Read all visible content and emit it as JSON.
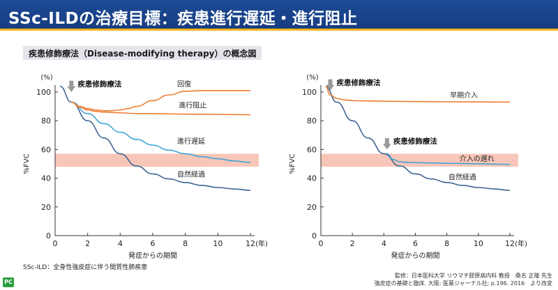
{
  "header": {
    "title": "SSc-ILDの治療目標：疾患進行遅延・進行阻止"
  },
  "banner": {
    "text": "疾患修飾療法（Disease-modifying therapy）の概念図"
  },
  "colors": {
    "header_bg": "#1d4b97",
    "accent": "#f4b41a",
    "orange": "#ee7d32",
    "blue": "#3fa3d9",
    "dark_blue": "#3e6591",
    "band": "#f7c6b8",
    "arrow": "#9a9a9a"
  },
  "chart_data": [
    {
      "type": "line",
      "title": "疾患修飾療法",
      "xlabel": "発症からの期間",
      "xunit": "(年)",
      "ylabel": "%FVC",
      "yunit": "(%)",
      "xlim": [
        0,
        12
      ],
      "ylim": [
        0,
        100
      ],
      "xticks": [
        0,
        2,
        4,
        6,
        8,
        10,
        12
      ],
      "yticks": [
        0,
        20,
        40,
        60,
        80,
        100
      ],
      "band": {
        "from": 48,
        "to": 57
      },
      "annotations": [
        {
          "text": "疾患修飾療法",
          "x": 1.0,
          "y": 103,
          "arrow": true
        }
      ],
      "series": [
        {
          "name": "回復",
          "color": "#ee7d32",
          "x": [
            1,
            1.5,
            2,
            2.5,
            3,
            3.5,
            4,
            4.5,
            5,
            6,
            7,
            8,
            9,
            10,
            11,
            12
          ],
          "y": [
            93,
            90,
            88.5,
            87.5,
            87,
            87,
            87.5,
            88.5,
            90,
            94,
            98,
            100.5,
            101,
            101,
            101,
            101
          ],
          "label_x": 7.5,
          "label_y": 104
        },
        {
          "name": "進行阻止",
          "color": "#ee7d32",
          "x": [
            1,
            1.5,
            2,
            2.5,
            3,
            4,
            5,
            6,
            7,
            8,
            9,
            10,
            11,
            12
          ],
          "y": [
            93,
            89.5,
            87.5,
            86.5,
            86,
            85.5,
            85,
            85,
            84.8,
            84.6,
            84.5,
            84.4,
            84.3,
            84.2
          ],
          "label_x": 7.6,
          "label_y": 89
        },
        {
          "name": "進行遅延",
          "color": "#3fa3d9",
          "x": [
            1,
            2,
            3,
            4,
            5,
            6,
            7,
            8,
            9,
            10,
            11,
            12
          ],
          "y": [
            93,
            85,
            78,
            72,
            67,
            63,
            59.5,
            57,
            55,
            53.5,
            52,
            51
          ],
          "label_x": 7.5,
          "label_y": 64
        },
        {
          "name": "自然経過",
          "color": "#3e6591",
          "x": [
            0.3,
            1,
            2,
            3,
            4,
            5,
            6,
            7,
            8,
            9,
            10,
            11,
            12
          ],
          "y": [
            104,
            93,
            80,
            68,
            57,
            48.5,
            43,
            39.5,
            37,
            35,
            33.5,
            32.5,
            31.5
          ],
          "label_x": 7.5,
          "label_y": 41
        }
      ]
    },
    {
      "type": "line",
      "title": "疾患修飾療法",
      "xlabel": "発症からの期間",
      "xunit": "(年)",
      "ylabel": "%FVC",
      "yunit": "(%)",
      "xlim": [
        0,
        12
      ],
      "ylim": [
        0,
        100
      ],
      "xticks": [
        0,
        2,
        4,
        6,
        8,
        10,
        12
      ],
      "yticks": [
        0,
        20,
        40,
        60,
        80,
        100
      ],
      "band": {
        "from": 48,
        "to": 57
      },
      "annotations": [
        {
          "text": "疾患修飾療法",
          "x": 0.6,
          "y": 104,
          "arrow": true
        },
        {
          "text": "疾患修飾療法",
          "x": 4.2,
          "y": 63,
          "arrow": true
        }
      ],
      "series": [
        {
          "name": "早期介入",
          "color": "#ee7d32",
          "x": [
            0.3,
            0.6,
            1,
            1.5,
            2,
            3,
            4,
            6,
            8,
            10,
            12
          ],
          "y": [
            104,
            98,
            95.5,
            94.5,
            94,
            93.8,
            93.6,
            93.4,
            93.2,
            93.1,
            93
          ],
          "label_x": 8.2,
          "label_y": 96
        },
        {
          "name": "介入の遅れ",
          "color": "#3fa3d9",
          "x": [
            4.2,
            4.6,
            5,
            5.5,
            6,
            7,
            8,
            9,
            10,
            11,
            12
          ],
          "y": [
            57,
            53,
            51.5,
            51,
            50.8,
            50.6,
            50.4,
            50.2,
            50,
            49.8,
            49.6
          ],
          "label_x": 8.8,
          "label_y": 52
        },
        {
          "name": "自然経過",
          "color": "#3e6591",
          "x": [
            0.3,
            1,
            2,
            3,
            4,
            5,
            6,
            7,
            8,
            9,
            10,
            11,
            12
          ],
          "y": [
            104,
            93,
            80,
            68,
            57,
            48.5,
            43,
            39.5,
            37,
            35,
            33.5,
            32.5,
            31.5
          ],
          "label_x": 8.1,
          "label_y": 39
        }
      ]
    }
  ],
  "footnote": {
    "text": "SSc-ILD：全身性強皮症に伴う間質性肺疾患"
  },
  "citation": {
    "line1": "監修：日本医科大学 リウマチ膠原病内科 教授　桑名 正隆 先生",
    "line2": "強皮症の基礎と臨床. 大阪: 医薬ジャーナル社; p.196. 2016　より改変"
  },
  "logo": {
    "text": "PC"
  }
}
